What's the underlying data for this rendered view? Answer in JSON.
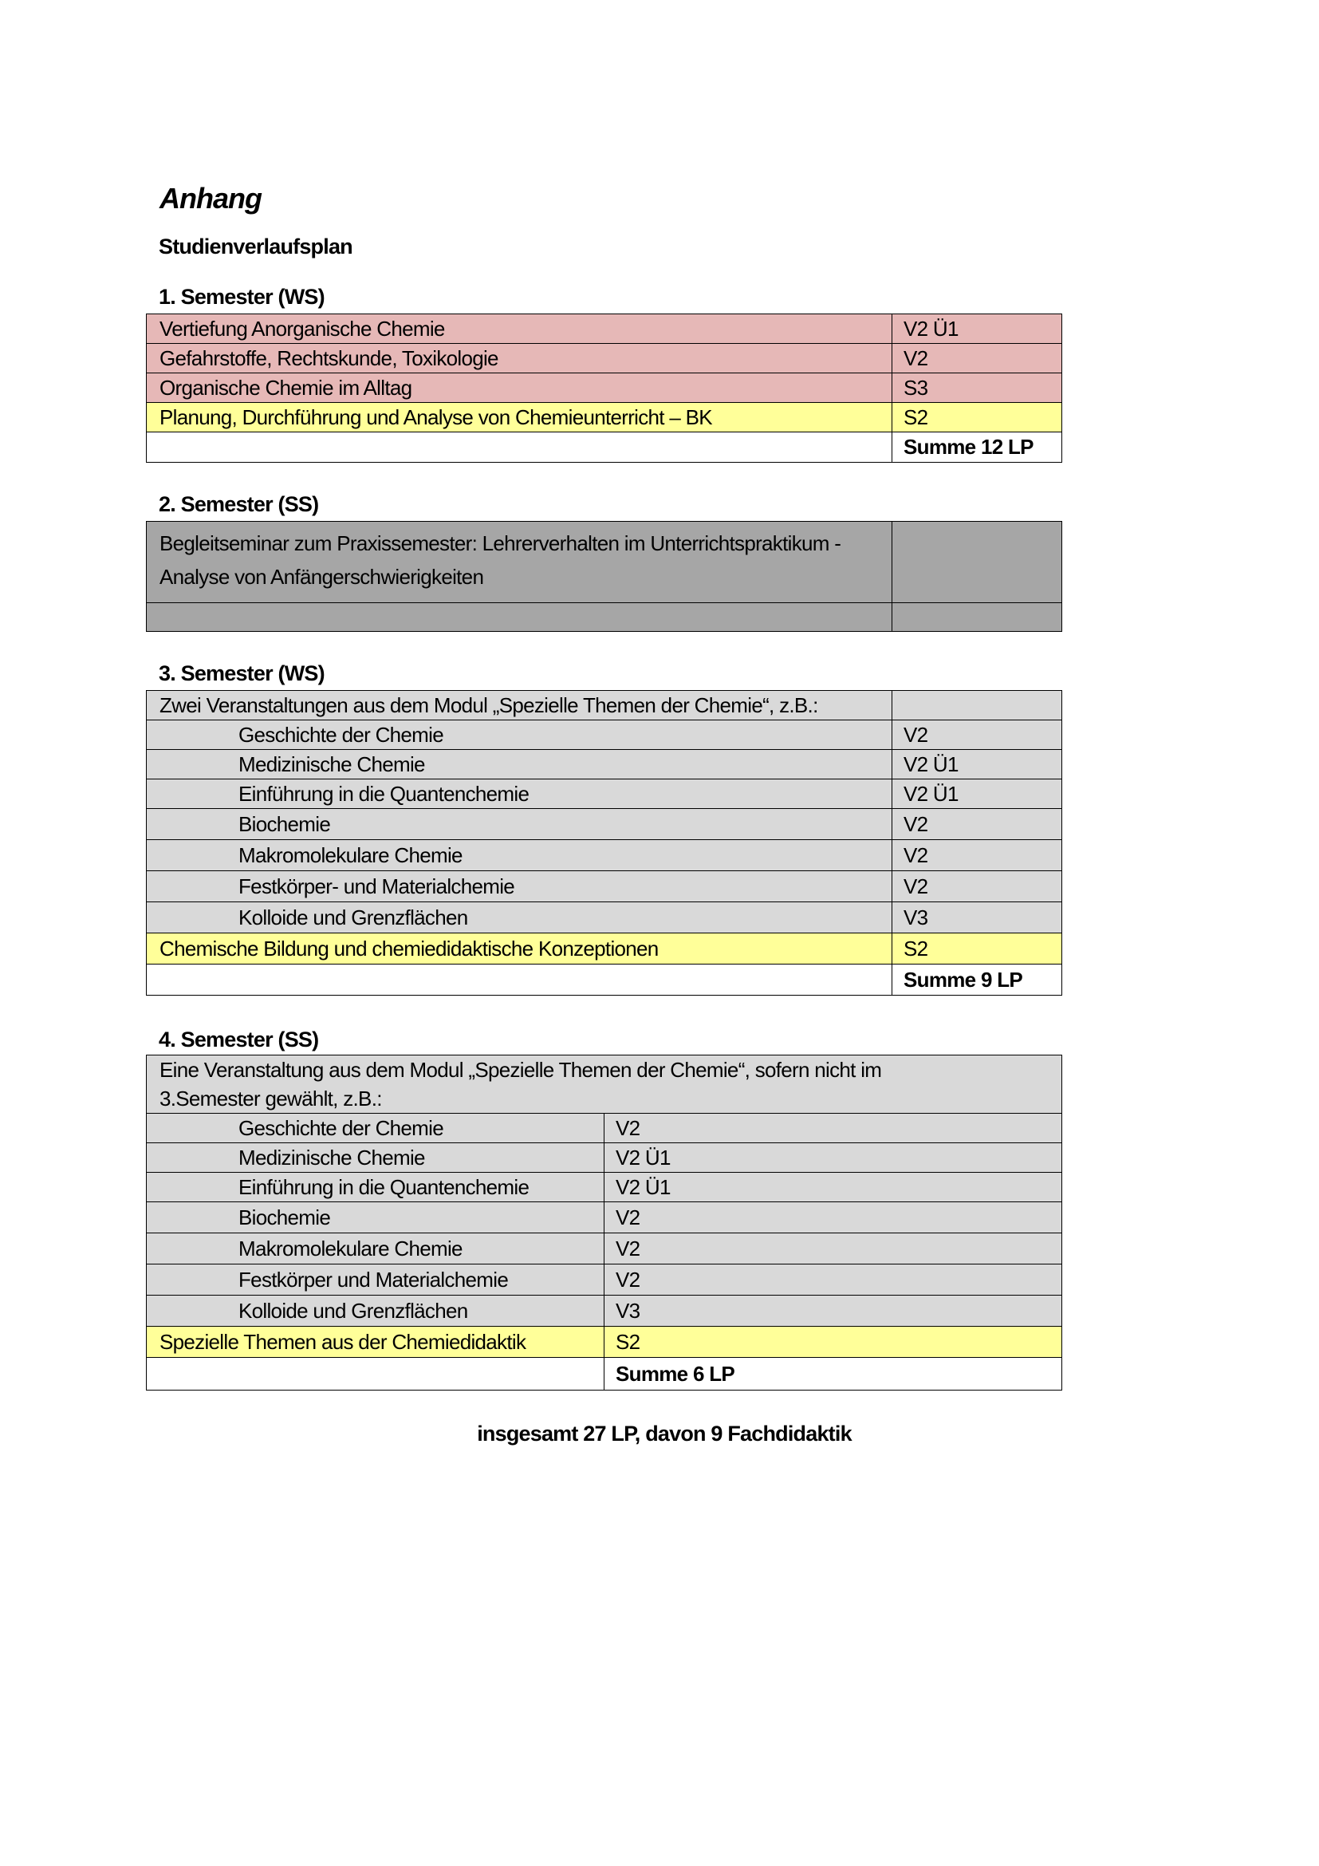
{
  "title": "Anhang",
  "subtitle": "Studienverlaufsplan",
  "colors": {
    "pink": "#e6b8b7",
    "yellow": "#ffff99",
    "dark_grey": "#a6a6a6",
    "light_grey": "#d9d9d9"
  },
  "semesters": [
    {
      "heading": "1. Semester (WS)",
      "rows": [
        {
          "course": "Vertiefung Anorganische Chemie",
          "type": "V2 Ü1"
        },
        {
          "course": "Gefahrstoffe, Rechtskunde, Toxikologie",
          "type": "V2"
        },
        {
          "course": "Organische Chemie im Alltag",
          "type": "S3"
        },
        {
          "course": "Planung, Durchführung und Analyse von Chemieunterricht – BK",
          "type": "S2"
        }
      ],
      "sum": "Summe 12 LP"
    },
    {
      "heading": "2. Semester (SS)",
      "rows": [
        {
          "course": "Begleitseminar zum Praxissemester: Lehrerverhalten im Unterrichtspraktikum - Analyse von Anfängerschwierigkeiten",
          "type": ""
        }
      ]
    },
    {
      "heading": "3. Semester (WS)",
      "intro": "Zwei Veranstaltungen aus dem Modul „Spezielle Themen der Chemie“, z.B.:",
      "rows": [
        {
          "course": "Geschichte der Chemie",
          "type": "V2"
        },
        {
          "course": "Medizinische Chemie",
          "type": "V2 Ü1"
        },
        {
          "course": "Einführung in die Quantenchemie",
          "type": "V2 Ü1"
        },
        {
          "course": "Biochemie",
          "type": "V2"
        },
        {
          "course": "Makromolekulare Chemie",
          "type": "V2"
        },
        {
          "course": "Festkörper- und Materialchemie",
          "type": "V2"
        },
        {
          "course": "Kolloide und Grenzflächen",
          "type": "V3"
        },
        {
          "course": "Chemische Bildung und chemiedidaktische Konzeptionen",
          "type": "S2"
        }
      ],
      "sum": "Summe 9 LP"
    },
    {
      "heading": "4. Semester (SS)",
      "intro": "Eine Veranstaltung aus dem Modul „Spezielle Themen der Chemie“, sofern nicht im 3.Semester gewählt, z.B.:",
      "rows": [
        {
          "course": "Geschichte der Chemie",
          "type": "V2"
        },
        {
          "course": "Medizinische Chemie",
          "type": "V2 Ü1"
        },
        {
          "course": "Einführung in die Quantenchemie",
          "type": "V2 Ü1"
        },
        {
          "course": "Biochemie",
          "type": "V2"
        },
        {
          "course": "Makromolekulare Chemie",
          "type": "V2"
        },
        {
          "course": "Festkörper und Materialchemie",
          "type": "V2"
        },
        {
          "course": "Kolloide und Grenzflächen",
          "type": "V3"
        },
        {
          "course": "Spezielle Themen aus der Chemiedidaktik",
          "type": "S2"
        }
      ],
      "sum": "Summe 6 LP"
    }
  ],
  "footer": "insgesamt 27 LP, davon 9 Fachdidaktik"
}
